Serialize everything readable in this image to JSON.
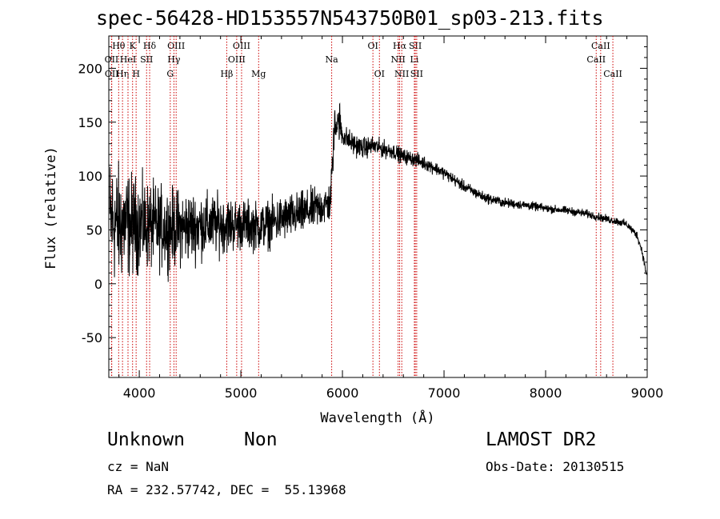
{
  "title": "spec-56428-HD153557N543750B01_sp03-213.fits",
  "info": {
    "class": "Unknown",
    "subclass": "Non",
    "survey": "LAMOST DR2",
    "cz": "cz = NaN",
    "obs_date": "Obs-Date: 20130515",
    "radec": "RA = 232.57742, DEC =  55.13968"
  },
  "chart_data": {
    "type": "line",
    "xlabel": "Wavelength (Å)",
    "ylabel": "Flux (relative)",
    "xlim": [
      3700,
      9000
    ],
    "ylim": [
      -87,
      230
    ],
    "xticks": [
      4000,
      5000,
      6000,
      7000,
      8000,
      9000
    ],
    "yticks": [
      -50,
      0,
      50,
      100,
      150,
      200
    ],
    "line_color": "#000000",
    "line_marker_color": "#cc0000",
    "line_markers": [
      {
        "label": "Hθ",
        "x": 3797,
        "row": 1
      },
      {
        "label": "OII",
        "x": 3727,
        "row": 2
      },
      {
        "label": "OII",
        "x": 3729,
        "row": 3
      },
      {
        "label": "Hη",
        "x": 3835,
        "row": 3
      },
      {
        "label": "HeI",
        "x": 3889,
        "row": 2
      },
      {
        "label": "K",
        "x": 3934,
        "row": 1
      },
      {
        "label": "SII",
        "x": 4072,
        "row": 2
      },
      {
        "label": "H",
        "x": 3969,
        "row": 3
      },
      {
        "label": "Hδ",
        "x": 4102,
        "row": 1
      },
      {
        "label": "OIII",
        "x": 4363,
        "row": 1
      },
      {
        "label": "Hγ",
        "x": 4341,
        "row": 2
      },
      {
        "label": "G",
        "x": 4305,
        "row": 3
      },
      {
        "label": "Hβ",
        "x": 4861,
        "row": 3
      },
      {
        "label": "OIII",
        "x": 5007,
        "row": 1
      },
      {
        "label": "OIII",
        "x": 4959,
        "row": 2
      },
      {
        "label": "Mg",
        "x": 5175,
        "row": 3
      },
      {
        "label": "Na",
        "x": 5894,
        "row": 2
      },
      {
        "label": "OI",
        "x": 6300,
        "row": 1
      },
      {
        "label": "OI",
        "x": 6364,
        "row": 3
      },
      {
        "label": "Hα",
        "x": 6563,
        "row": 1
      },
      {
        "label": "NII",
        "x": 6548,
        "row": 2
      },
      {
        "label": "NII",
        "x": 6584,
        "row": 3
      },
      {
        "label": "SII",
        "x": 6717,
        "row": 1
      },
      {
        "label": "Li",
        "x": 6708,
        "row": 2
      },
      {
        "label": "SII",
        "x": 6731,
        "row": 3
      },
      {
        "label": "CaII",
        "x": 8542,
        "row": 1
      },
      {
        "label": "CaII",
        "x": 8498,
        "row": 2
      },
      {
        "label": "CaII",
        "x": 8662,
        "row": 3
      }
    ],
    "spectrum_envelope": {
      "x": [
        3700,
        3800,
        3900,
        4000,
        4200,
        4400,
        4600,
        4800,
        5000,
        5200,
        5400,
        5600,
        5800,
        5880,
        5920,
        5950,
        6000,
        6100,
        6200,
        6300,
        6400,
        6500,
        6600,
        6700,
        6800,
        6900,
        7000,
        7200,
        7400,
        7600,
        7800,
        8000,
        8200,
        8400,
        8600,
        8700,
        8800,
        8900,
        8950,
        9000
      ],
      "y": [
        60,
        55,
        55,
        55,
        52,
        52,
        54,
        55,
        55,
        53,
        60,
        65,
        72,
        75,
        140,
        150,
        138,
        130,
        126,
        128,
        125,
        123,
        118,
        116,
        112,
        108,
        103,
        90,
        80,
        75,
        73,
        70,
        68,
        65,
        60,
        58,
        55,
        45,
        30,
        5
      ]
    },
    "spectrum_noise_amplitude": {
      "x": [
        3700,
        4000,
        4500,
        5000,
        5500,
        5900,
        6000,
        6500,
        7000,
        8000,
        9000
      ],
      "y": [
        65,
        45,
        35,
        25,
        22,
        20,
        12,
        8,
        6,
        4,
        4
      ]
    }
  }
}
